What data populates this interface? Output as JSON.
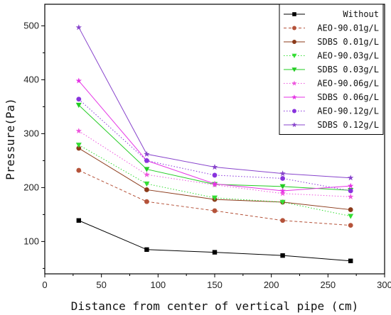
{
  "chart_data": {
    "type": "line",
    "title": "",
    "xlabel": "Distance from center of vertical pipe (cm)",
    "ylabel": "Pressure(Pa)",
    "xlim": [
      0,
      300
    ],
    "ylim": [
      40,
      540
    ],
    "xticks": [
      0,
      50,
      100,
      150,
      200,
      250,
      300
    ],
    "yticks": [
      100,
      200,
      300,
      400,
      500
    ],
    "grid": false,
    "legend_position": "top-right",
    "x": [
      30,
      90,
      150,
      210,
      270
    ],
    "series": [
      {
        "name": "Without",
        "values": [
          139,
          85,
          80,
          74,
          64
        ],
        "color": "#000000",
        "dash": "solid",
        "marker": "square"
      },
      {
        "name": "AEO-90.01g/L",
        "values": [
          232,
          174,
          157,
          139,
          130
        ],
        "color": "#b5533a",
        "dash": "dashed",
        "marker": "circle"
      },
      {
        "name": "SDBS 0.01g/L",
        "values": [
          273,
          196,
          178,
          173,
          159
        ],
        "color": "#8b3a1a",
        "dash": "solid",
        "marker": "circle"
      },
      {
        "name": "AEO-90.03g/L",
        "values": [
          279,
          207,
          181,
          173,
          147
        ],
        "color": "#33dd33",
        "dash": "dotted",
        "marker": "triangle-down"
      },
      {
        "name": "SDBS 0.03g/L",
        "values": [
          353,
          234,
          206,
          202,
          195
        ],
        "color": "#22cc22",
        "dash": "solid",
        "marker": "triangle-down"
      },
      {
        "name": "AEO-90.06g/L",
        "values": [
          305,
          224,
          205,
          189,
          183
        ],
        "color": "#ee55dd",
        "dash": "dotted",
        "marker": "star"
      },
      {
        "name": "SDBS 0.06g/L",
        "values": [
          398,
          250,
          207,
          194,
          203
        ],
        "color": "#e533e5",
        "dash": "solid",
        "marker": "star"
      },
      {
        "name": "AEO-90.12g/L",
        "values": [
          364,
          250,
          223,
          217,
          194
        ],
        "color": "#8833dd",
        "dash": "dotted",
        "marker": "circle"
      },
      {
        "name": "SDBS 0.12g/L",
        "values": [
          497,
          262,
          238,
          226,
          218
        ],
        "color": "#8844cc",
        "dash": "solid",
        "marker": "star"
      }
    ]
  }
}
